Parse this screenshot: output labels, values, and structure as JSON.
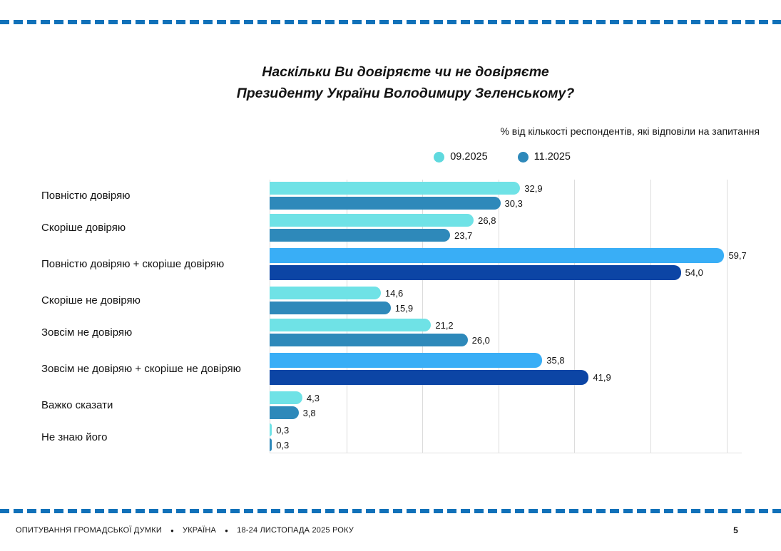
{
  "header": {
    "title_line1": "Наскільки Ви довіряєте чи не довіряєте",
    "title_line2": "Президенту України Володимиру Зеленському?",
    "subtitle": "% від кількості респондентів, які відповіли на запитання"
  },
  "chart_data": {
    "type": "bar",
    "orientation": "horizontal",
    "title": "Наскільки Ви довіряєте чи не довіряєте Президенту України Володимиру Зеленському?",
    "subtitle": "% від кількості респондентів, які відповіли на запитання",
    "legend_position": "top-right",
    "grid": true,
    "xlim": [
      0,
      62
    ],
    "gridline_step": 10,
    "decimal_separator": ",",
    "categories": [
      "Повністю довіряю",
      "Скоріше довіряю",
      "Повністю довіряю + скоріше довіряю",
      "Скоріше не довіряю",
      "Зовсім не довіряю",
      "Зовсім не довіряю + скоріше не довіряю",
      "Важко сказати",
      "Не знаю його"
    ],
    "series": [
      {
        "name": "09.2025",
        "values": [
          32.9,
          26.8,
          59.7,
          14.6,
          21.2,
          35.8,
          4.3,
          0.3
        ]
      },
      {
        "name": "11.2025",
        "values": [
          30.3,
          23.7,
          54.0,
          15.9,
          26.0,
          41.9,
          3.8,
          0.3
        ]
      }
    ],
    "value_labels": [
      [
        "32,9",
        "30,3"
      ],
      [
        "26,8",
        "23,7"
      ],
      [
        "59,7",
        "54,0"
      ],
      [
        "14,6",
        "15,9"
      ],
      [
        "21,2",
        "26,0"
      ],
      [
        "35,8",
        "41,9"
      ],
      [
        "4,3",
        "3,8"
      ],
      [
        "0,3",
        "0,3"
      ]
    ],
    "emphasized_rows": [
      2,
      5
    ],
    "colors": {
      "series1": "#6FE2E6",
      "series2": "#2E89BA",
      "series1_emphasis": "#39AEF6",
      "series2_emphasis": "#0C45A5",
      "legend_dot1": "#5FD9DE",
      "legend_dot2": "#2E89BA",
      "gridline": "#DCDCDC",
      "value_label": "#141414"
    }
  },
  "footer": {
    "survey_label": "ОПИТУВАННЯ ГРОМАДСЬКОЇ ДУМКИ",
    "country": "УКРАЇНА",
    "date_range": "18-24 ЛИСТОПАДА 2025 РОКУ",
    "bullet": "●",
    "page_number": "5"
  },
  "decor": {
    "dashed_line_color": "#1171B9"
  }
}
